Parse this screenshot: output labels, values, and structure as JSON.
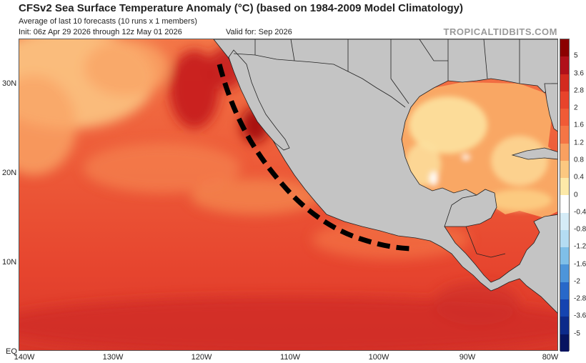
{
  "header": {
    "title": "CFSv2 Sea Surface Temperature Anomaly (°C) (based on 1984-2009 Model Climatology)",
    "subtitle": "Average of last 10 forecasts (10 runs x 1 members)",
    "init": "Init: 06z Apr 29 2026 through 12z May 01 2026",
    "valid": "Valid for: Sep 2026",
    "brand": "TROPICALTIDBITS.COM"
  },
  "axes": {
    "lat_labels": [
      "30N",
      "20N",
      "10N",
      "EQ"
    ],
    "lon_labels": [
      "140W",
      "130W",
      "120W",
      "110W",
      "100W",
      "90W",
      "80W"
    ]
  },
  "colorbar": {
    "labels": [
      "5",
      "3.6",
      "2.8",
      "2",
      "1.6",
      "1.2",
      "0.8",
      "0.4",
      "0",
      "-0.4",
      "-0.8",
      "-1.2",
      "-1.6",
      "-2",
      "-2.8",
      "-3.6",
      "-5"
    ],
    "colors": [
      "#8b0000",
      "#b0101a",
      "#d32a1f",
      "#e8432b",
      "#f05a36",
      "#f57545",
      "#f9a060",
      "#fcc880",
      "#fde9a8",
      "#ffffff",
      "#d5ecf7",
      "#b4dcf3",
      "#7fbfe8",
      "#4d95da",
      "#2868c9",
      "#1544b0",
      "#0c2a8a",
      "#061460"
    ]
  },
  "map": {
    "ocean_base": "#e8452f",
    "land_color": "#c4c4c4",
    "border_color": "#222222",
    "track_color": "#000000"
  }
}
